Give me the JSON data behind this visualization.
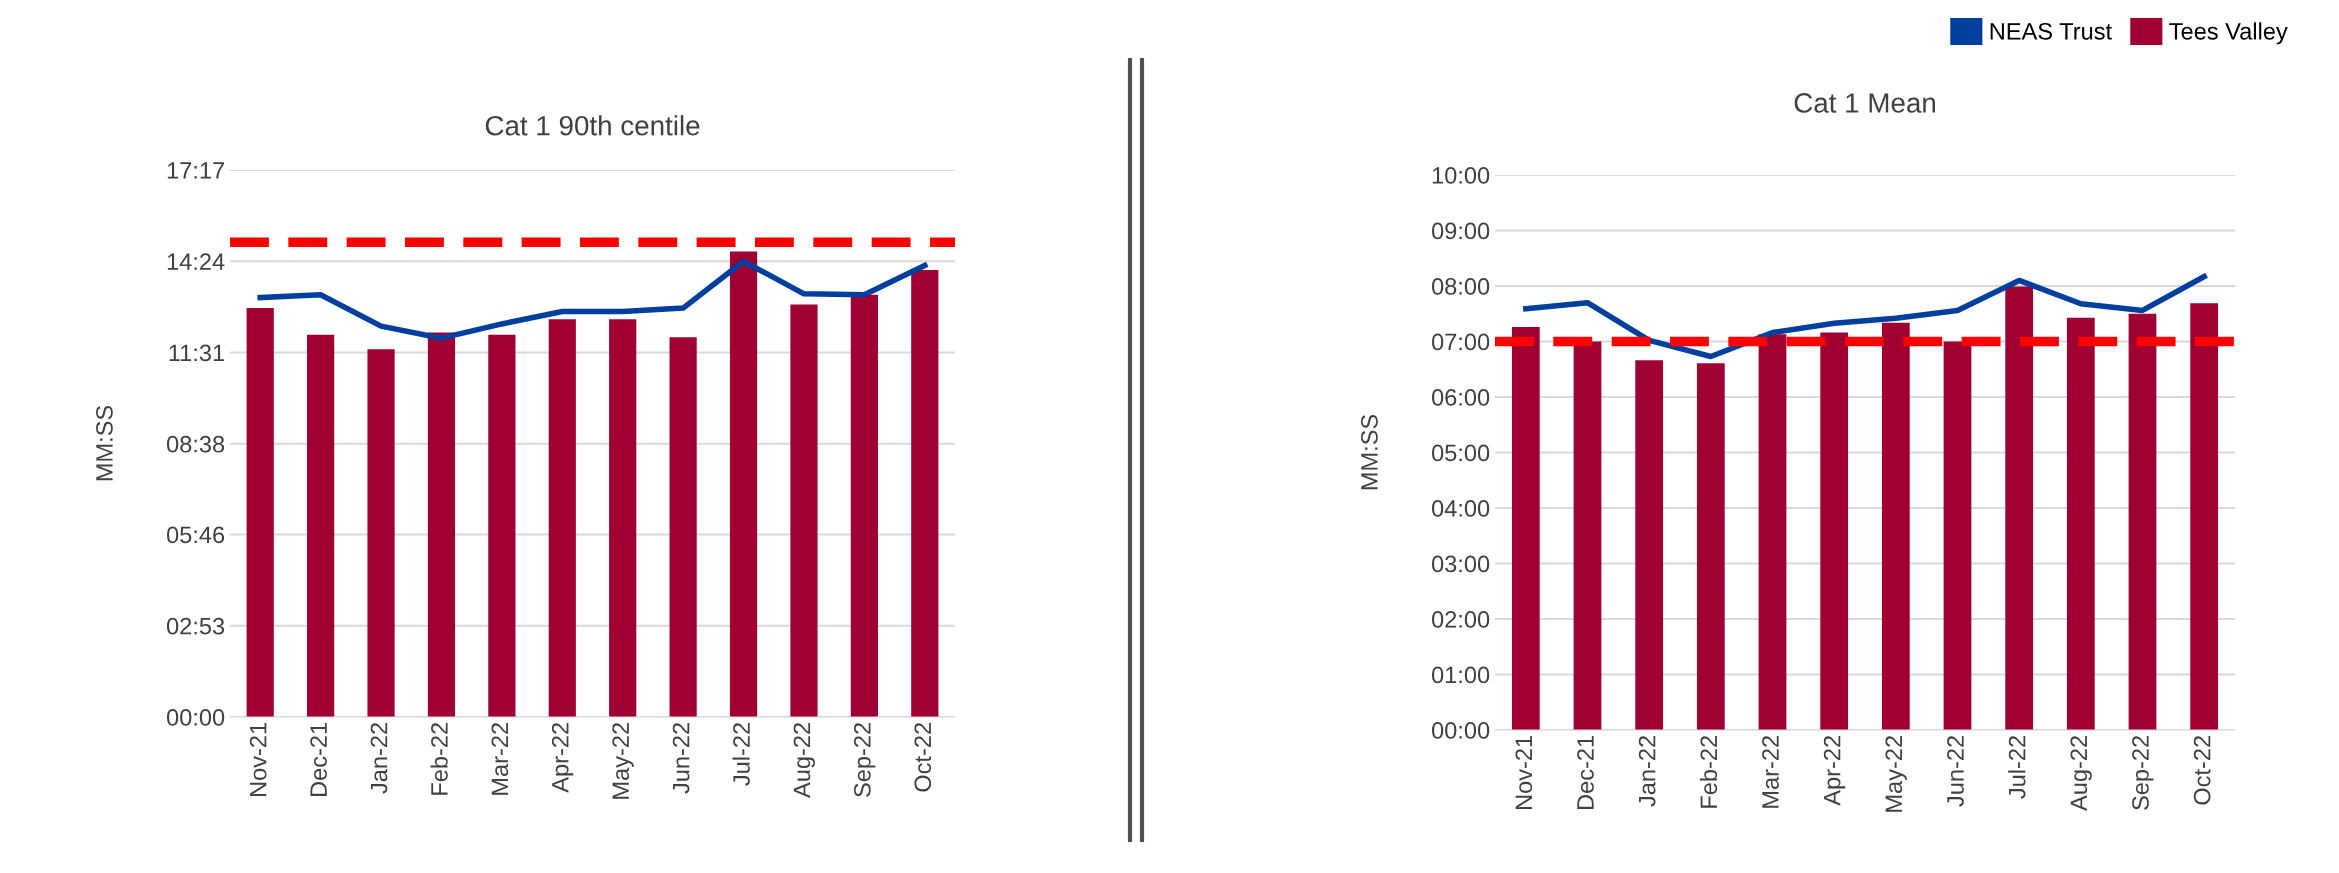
{
  "chart_data": [
    {
      "type": "bar",
      "title": "Cat 1 90th centile",
      "ylabel": "MM:SS",
      "categories": [
        "Nov-21",
        "Dec-21",
        "Jan-22",
        "Feb-22",
        "Mar-22",
        "Apr-22",
        "May-22",
        "Jun-22",
        "Jul-22",
        "Aug-22",
        "Sep-22",
        "Oct-22"
      ],
      "series": [
        {
          "type": "line",
          "color": "#003f9e",
          "values": [
            13.25,
            13.34,
            12.35,
            11.97,
            12.42,
            12.81,
            12.81,
            12.92,
            14.4,
            13.37,
            13.34,
            14.27
          ]
        },
        {
          "color": "#a00032",
          "values": [
            12.92,
            12.08,
            11.62,
            12.15,
            12.08,
            12.57,
            12.57,
            12.0,
            14.71,
            13.03,
            13.34,
            14.12
          ]
        }
      ],
      "ylim": [
        0,
        17.283
      ],
      "yticks": [
        {
          "value": 0,
          "label": "00:00"
        },
        {
          "value": 2.883,
          "label": "02:53"
        },
        {
          "value": 5.767,
          "label": "05:46"
        },
        {
          "value": 8.633,
          "label": "08:38"
        },
        {
          "value": 11.517,
          "label": "11:31"
        },
        {
          "value": 14.4,
          "label": "14:24"
        },
        {
          "value": 17.283,
          "label": "17:17"
        }
      ],
      "ref_lines": [
        {
          "axis": "y",
          "value": 15.0,
          "label": null,
          "color": "#ff0000",
          "line_style": "dashed"
        }
      ],
      "grid": "y",
      "marker": "none",
      "line_style": "solid"
    },
    {
      "type": "bar",
      "title": "Cat 1 Mean",
      "ylabel": "MM:SS",
      "categories": [
        "Nov-21",
        "Dec-21",
        "Jan-22",
        "Feb-22",
        "Mar-22",
        "Apr-22",
        "May-22",
        "Jun-22",
        "Jul-22",
        "Aug-22",
        "Sep-22",
        "Oct-22"
      ],
      "series": [
        {
          "name": "NEAS Trust",
          "type": "line",
          "color": "#003f9e",
          "values": [
            7.59,
            7.7,
            7.02,
            6.73,
            7.16,
            7.33,
            7.42,
            7.56,
            8.1,
            7.68,
            7.56,
            8.17
          ]
        },
        {
          "name": "Tees Valley",
          "color": "#a00032",
          "values": [
            7.26,
            7.0,
            6.66,
            6.61,
            7.13,
            7.16,
            7.34,
            7.0,
            7.99,
            7.43,
            7.5,
            7.69
          ]
        }
      ],
      "ylim": [
        0,
        10
      ],
      "yticks": [
        {
          "value": 0,
          "label": "00:00"
        },
        {
          "value": 1,
          "label": "01:00"
        },
        {
          "value": 2,
          "label": "02:00"
        },
        {
          "value": 3,
          "label": "03:00"
        },
        {
          "value": 4,
          "label": "04:00"
        },
        {
          "value": 5,
          "label": "05:00"
        },
        {
          "value": 6,
          "label": "06:00"
        },
        {
          "value": 7,
          "label": "07:00"
        },
        {
          "value": 8,
          "label": "08:00"
        },
        {
          "value": 9,
          "label": "09:00"
        },
        {
          "value": 10,
          "label": "10:00"
        }
      ],
      "ref_lines": [
        {
          "axis": "y",
          "value": 7.0,
          "label": null,
          "color": "#ff0000",
          "line_style": "dashed"
        }
      ],
      "grid": "y",
      "marker": "none",
      "line_style": "solid",
      "legend": "top right"
    }
  ]
}
